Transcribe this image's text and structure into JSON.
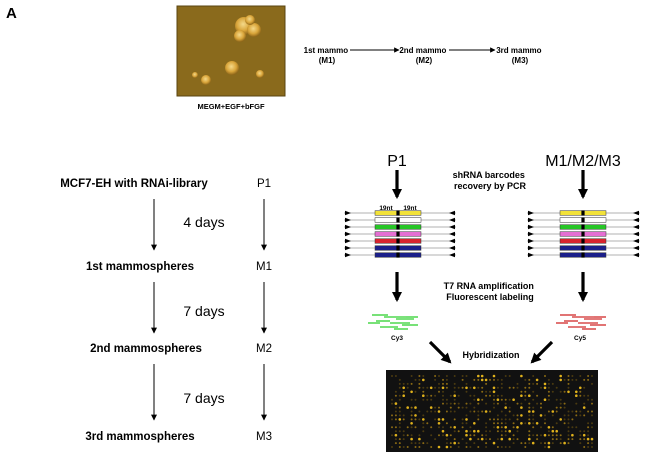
{
  "panel_label": "A",
  "culture": {
    "medium_label": "MEGM+EGF+bFGF",
    "image_bg": "#8a6a1c"
  },
  "passage_flow": {
    "steps": [
      {
        "line1": "1st mammo",
        "line2": "(M1)"
      },
      {
        "line1": "2nd mammo",
        "line2": "(M2)"
      },
      {
        "line1": "3rd mammo",
        "line2": "(M3)"
      }
    ]
  },
  "timeline": {
    "start_label": "MCF7-EH with RNAi-library",
    "stages": [
      {
        "label": "1st mammospheres",
        "code": "M1"
      },
      {
        "label": "2nd mammospheres",
        "code": "M2"
      },
      {
        "label": "3rd mammospheres",
        "code": "M3"
      }
    ],
    "start_code": "P1",
    "intervals": [
      "4 days",
      "7 days",
      "7 days"
    ]
  },
  "protocol": {
    "left_sample": "P1",
    "right_sample": "M1/M2/M3",
    "step1_line1": "shRNA barcodes",
    "step1_line2": "recovery by PCR",
    "barcode_left": "19nt",
    "barcode_right": "19nt",
    "step2_line1": "T7 RNA amplification",
    "step2_line2": "Fluorescent labeling",
    "dye_left": "Cy3",
    "dye_right": "Cy5",
    "step3": "Hybridization"
  },
  "colors": {
    "cy3_green": "#2fd12f",
    "cy5_red": "#d12a2a",
    "array_bg": "#111111",
    "array_spot": "#e0b21c",
    "strand_yellow": "#f2e23a",
    "strand_green": "#27c627",
    "strand_pink": "#e46fd2",
    "strand_red": "#d8232e",
    "strand_navy": "#1b1f8a"
  }
}
